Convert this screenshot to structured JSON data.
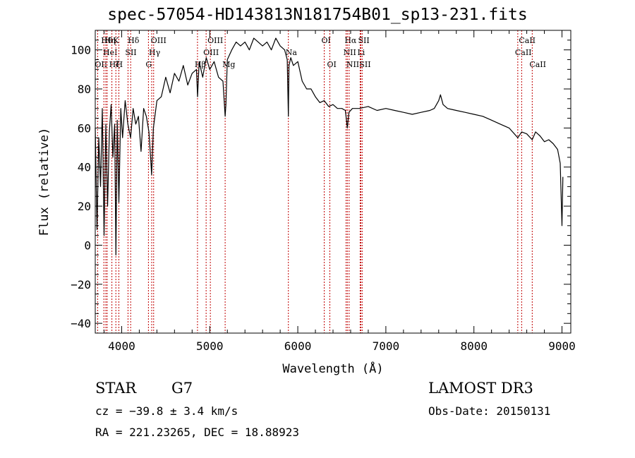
{
  "page": {
    "title": "spec-57054-HD143813N181754B01_sp13-231.fits"
  },
  "chart_data": {
    "type": "line",
    "title": "spec-57054-HD143813N181754B01_sp13-231.fits",
    "xlabel": "Wavelength (Å)",
    "ylabel": "Flux (relative)",
    "xlim": [
      3700,
      9100
    ],
    "ylim": [
      -45,
      110
    ],
    "xticks": [
      4000,
      5000,
      6000,
      7000,
      8000,
      9000
    ],
    "xtick_labels": [
      "4000",
      "5000",
      "6000",
      "7000",
      "8000",
      "9000"
    ],
    "yticks": [
      -40,
      -20,
      0,
      20,
      40,
      60,
      80,
      100
    ],
    "ytick_labels": [
      "−40",
      "−20",
      "0",
      "20",
      "40",
      "60",
      "80",
      "100"
    ],
    "series": [
      {
        "name": "spectrum",
        "x": [
          3700,
          3720,
          3740,
          3760,
          3780,
          3800,
          3820,
          3840,
          3860,
          3880,
          3900,
          3920,
          3935,
          3950,
          3968,
          3990,
          4010,
          4040,
          4070,
          4101,
          4130,
          4160,
          4190,
          4220,
          4250,
          4280,
          4310,
          4330,
          4340,
          4360,
          4400,
          4450,
          4500,
          4550,
          4600,
          4650,
          4700,
          4750,
          4800,
          4850,
          4862,
          4880,
          4920,
          4960,
          5000,
          5050,
          5100,
          5150,
          5175,
          5184,
          5200,
          5250,
          5300,
          5350,
          5400,
          5450,
          5500,
          5550,
          5600,
          5650,
          5700,
          5750,
          5800,
          5850,
          5880,
          5893,
          5900,
          5920,
          5950,
          6000,
          6050,
          6100,
          6150,
          6200,
          6250,
          6300,
          6350,
          6400,
          6450,
          6500,
          6540,
          6563,
          6580,
          6620,
          6700,
          6800,
          6900,
          7000,
          7100,
          7200,
          7300,
          7400,
          7500,
          7550,
          7600,
          7620,
          7650,
          7700,
          7800,
          7900,
          8000,
          8100,
          8200,
          8300,
          8400,
          8498,
          8542,
          8600,
          8662,
          8700,
          8750,
          8800,
          8850,
          8900,
          8950,
          8980,
          9000,
          9010
        ],
        "y": [
          60,
          8,
          55,
          30,
          70,
          5,
          62,
          20,
          58,
          72,
          45,
          62,
          -5,
          64,
          22,
          70,
          55,
          74,
          62,
          55,
          70,
          62,
          66,
          48,
          70,
          66,
          58,
          44,
          36,
          60,
          74,
          76,
          86,
          78,
          88,
          84,
          92,
          82,
          88,
          90,
          76,
          94,
          86,
          96,
          90,
          94,
          86,
          84,
          66,
          72,
          95,
          100,
          104,
          102,
          104,
          100,
          106,
          104,
          102,
          104,
          100,
          106,
          102,
          100,
          95,
          66,
          92,
          96,
          92,
          94,
          84,
          80,
          80,
          76,
          73,
          74,
          71,
          72,
          70,
          70,
          69,
          60,
          68,
          70,
          70,
          71,
          69,
          70,
          69,
          68,
          67,
          68,
          69,
          70,
          74,
          77,
          72,
          70,
          69,
          68,
          67,
          66,
          64,
          62,
          60,
          55,
          58,
          57,
          54,
          58,
          56,
          53,
          54,
          52,
          49,
          42,
          10,
          35
        ]
      }
    ],
    "lines": [
      {
        "name": "OII",
        "x": 3727,
        "level": 3
      },
      {
        "name": "Hθ",
        "x": 3798,
        "level": 1
      },
      {
        "name": "HeI",
        "x": 3820,
        "level": 2
      },
      {
        "name": "Hη",
        "x": 3835,
        "level": 1
      },
      {
        "name": "Hζ",
        "x": 3889,
        "level": 3
      },
      {
        "name": "K",
        "x": 3934,
        "level": 1
      },
      {
        "name": "H",
        "x": 3968,
        "level": 3
      },
      {
        "name": "SII",
        "x": 4072,
        "level": 2
      },
      {
        "name": "Hδ",
        "x": 4102,
        "level": 1
      },
      {
        "name": "G",
        "x": 4304,
        "level": 3
      },
      {
        "name": "Hγ",
        "x": 4341,
        "level": 2
      },
      {
        "name": "OIII",
        "x": 4363,
        "level": 1
      },
      {
        "name": "Hβ",
        "x": 4861,
        "level": 3
      },
      {
        "name": "OIII",
        "x": 4959,
        "level": 2
      },
      {
        "name": "OIII",
        "x": 5007,
        "level": 1
      },
      {
        "name": "Mg",
        "x": 5175,
        "level": 3
      },
      {
        "name": "Na",
        "x": 5893,
        "level": 2
      },
      {
        "name": "OI",
        "x": 6300,
        "level": 1
      },
      {
        "name": "OI",
        "x": 6364,
        "level": 3
      },
      {
        "name": "NII",
        "x": 6548,
        "level": 2
      },
      {
        "name": "Hα",
        "x": 6563,
        "level": 1
      },
      {
        "name": "NII",
        "x": 6583,
        "level": 3
      },
      {
        "name": "Li",
        "x": 6708,
        "level": 2
      },
      {
        "name": "SII",
        "x": 6716,
        "level": 1
      },
      {
        "name": "SII",
        "x": 6731,
        "level": 3
      },
      {
        "name": "CaII",
        "x": 8498,
        "level": 2
      },
      {
        "name": "CaII",
        "x": 8542,
        "level": 1
      },
      {
        "name": "CaII",
        "x": 8662,
        "level": 3
      }
    ]
  },
  "info": {
    "object_class": "STAR",
    "subclass": "G7",
    "survey": "LAMOST DR3",
    "cz": "cz = −39.8 ± 3.4 km/s",
    "obs_date": "Obs-Date: 20150131",
    "coords": "RA = 221.23265, DEC =  18.88923"
  },
  "colors": {
    "line_markers": "#c00000",
    "spectrum": "#000000",
    "axes": "#000000"
  }
}
